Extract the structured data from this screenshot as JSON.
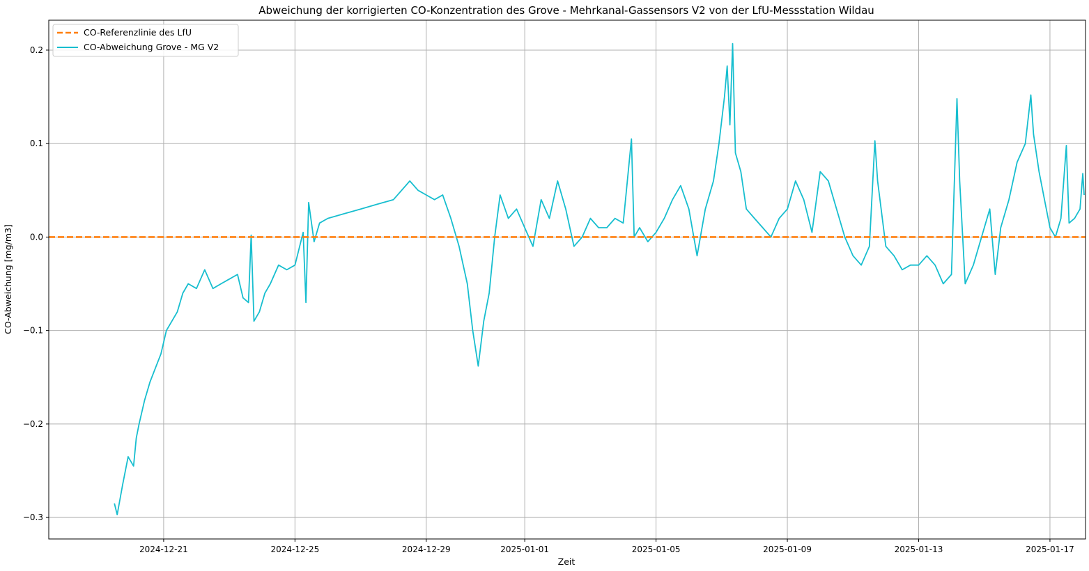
{
  "chart_data": {
    "type": "line",
    "title": "Abweichung der korrigierten CO-Konzentration des Grove - Mehrkanal-Gassensors V2 von der LfU-Messstation Wildau",
    "xlabel": "Zeit",
    "ylabel": "CO-Abweichung [mg/m3]",
    "xlim": [
      "2024-12-17T12:00",
      "2025-01-18T02:00"
    ],
    "ylim": [
      -0.323,
      0.232
    ],
    "x_ticks": [
      "2024-12-21",
      "2024-12-25",
      "2024-12-29",
      "2025-01-01",
      "2025-01-05",
      "2025-01-09",
      "2025-01-13",
      "2025-01-17"
    ],
    "y_ticks": [
      -0.3,
      -0.2,
      -0.1,
      0.0,
      0.1,
      0.2
    ],
    "y_tick_labels": [
      "−0.3",
      "−0.2",
      "−0.1",
      "0.0",
      "0.1",
      "0.2"
    ],
    "grid": true,
    "legend_position": "top-left",
    "series": [
      {
        "name": "CO-Referenzlinie des LfU",
        "style": "dashed",
        "color": "#ff7f0e",
        "points": [
          [
            "2024-12-17T12:00",
            0.0
          ],
          [
            "2025-01-18T02:00",
            0.0
          ]
        ]
      },
      {
        "name": "CO-Abweichung Grove - MG V2",
        "style": "solid",
        "color": "#17becf",
        "points": [
          [
            "2024-12-19T12:00",
            -0.285
          ],
          [
            "2024-12-19T14:00",
            -0.297
          ],
          [
            "2024-12-19T18:00",
            -0.265
          ],
          [
            "2024-12-19T22:00",
            -0.235
          ],
          [
            "2024-12-20T02:00",
            -0.245
          ],
          [
            "2024-12-20T04:00",
            -0.215
          ],
          [
            "2024-12-20T06:00",
            -0.2
          ],
          [
            "2024-12-20T10:00",
            -0.175
          ],
          [
            "2024-12-20T14:00",
            -0.155
          ],
          [
            "2024-12-20T18:00",
            -0.14
          ],
          [
            "2024-12-20T22:00",
            -0.125
          ],
          [
            "2024-12-21T02:00",
            -0.1
          ],
          [
            "2024-12-21T06:00",
            -0.09
          ],
          [
            "2024-12-21T10:00",
            -0.08
          ],
          [
            "2024-12-21T14:00",
            -0.06
          ],
          [
            "2024-12-21T18:00",
            -0.05
          ],
          [
            "2024-12-22T00:00",
            -0.055
          ],
          [
            "2024-12-22T06:00",
            -0.035
          ],
          [
            "2024-12-22T12:00",
            -0.055
          ],
          [
            "2024-12-22T18:00",
            -0.05
          ],
          [
            "2024-12-23T00:00",
            -0.045
          ],
          [
            "2024-12-23T06:00",
            -0.04
          ],
          [
            "2024-12-23T10:00",
            -0.065
          ],
          [
            "2024-12-23T14:00",
            -0.07
          ],
          [
            "2024-12-23T16:00",
            0.002
          ],
          [
            "2024-12-23T18:00",
            -0.09
          ],
          [
            "2024-12-23T22:00",
            -0.08
          ],
          [
            "2024-12-24T02:00",
            -0.06
          ],
          [
            "2024-12-24T06:00",
            -0.05
          ],
          [
            "2024-12-24T12:00",
            -0.03
          ],
          [
            "2024-12-24T18:00",
            -0.035
          ],
          [
            "2024-12-25T00:00",
            -0.03
          ],
          [
            "2024-12-25T06:00",
            0.005
          ],
          [
            "2024-12-25T08:00",
            -0.07
          ],
          [
            "2024-12-25T10:00",
            0.037
          ],
          [
            "2024-12-25T14:00",
            -0.005
          ],
          [
            "2024-12-25T18:00",
            0.015
          ],
          [
            "2024-12-26T00:00",
            0.02
          ],
          [
            "2024-12-26T12:00",
            0.025
          ],
          [
            "2024-12-27T00:00",
            0.03
          ],
          [
            "2024-12-27T12:00",
            0.035
          ],
          [
            "2024-12-28T00:00",
            0.04
          ],
          [
            "2024-12-28T12:00",
            0.06
          ],
          [
            "2024-12-28T18:00",
            0.05
          ],
          [
            "2024-12-29T00:00",
            0.045
          ],
          [
            "2024-12-29T06:00",
            0.04
          ],
          [
            "2024-12-29T12:00",
            0.045
          ],
          [
            "2024-12-29T18:00",
            0.02
          ],
          [
            "2024-12-30T00:00",
            -0.01
          ],
          [
            "2024-12-30T06:00",
            -0.05
          ],
          [
            "2024-12-30T10:00",
            -0.1
          ],
          [
            "2024-12-30T14:00",
            -0.138
          ],
          [
            "2024-12-30T18:00",
            -0.09
          ],
          [
            "2024-12-30T22:00",
            -0.06
          ],
          [
            "2024-12-31T02:00",
            0.0
          ],
          [
            "2024-12-31T06:00",
            0.045
          ],
          [
            "2024-12-31T12:00",
            0.02
          ],
          [
            "2024-12-31T18:00",
            0.03
          ],
          [
            "2025-01-01T00:00",
            0.01
          ],
          [
            "2025-01-01T06:00",
            -0.01
          ],
          [
            "2025-01-01T12:00",
            0.04
          ],
          [
            "2025-01-01T18:00",
            0.02
          ],
          [
            "2025-01-02T00:00",
            0.06
          ],
          [
            "2025-01-02T06:00",
            0.03
          ],
          [
            "2025-01-02T12:00",
            -0.01
          ],
          [
            "2025-01-02T18:00",
            0.0
          ],
          [
            "2025-01-03T00:00",
            0.02
          ],
          [
            "2025-01-03T06:00",
            0.01
          ],
          [
            "2025-01-03T12:00",
            0.01
          ],
          [
            "2025-01-03T18:00",
            0.02
          ],
          [
            "2025-01-04T00:00",
            0.015
          ],
          [
            "2025-01-04T06:00",
            0.105
          ],
          [
            "2025-01-04T08:00",
            0.0
          ],
          [
            "2025-01-04T12:00",
            0.01
          ],
          [
            "2025-01-04T18:00",
            -0.005
          ],
          [
            "2025-01-05T00:00",
            0.005
          ],
          [
            "2025-01-05T06:00",
            0.02
          ],
          [
            "2025-01-05T12:00",
            0.04
          ],
          [
            "2025-01-05T18:00",
            0.055
          ],
          [
            "2025-01-06T00:00",
            0.03
          ],
          [
            "2025-01-06T06:00",
            -0.02
          ],
          [
            "2025-01-06T12:00",
            0.03
          ],
          [
            "2025-01-06T18:00",
            0.06
          ],
          [
            "2025-01-06T22:00",
            0.1
          ],
          [
            "2025-01-07T02:00",
            0.15
          ],
          [
            "2025-01-07T04:00",
            0.183
          ],
          [
            "2025-01-07T06:00",
            0.12
          ],
          [
            "2025-01-07T08:00",
            0.207
          ],
          [
            "2025-01-07T10:00",
            0.09
          ],
          [
            "2025-01-07T14:00",
            0.07
          ],
          [
            "2025-01-07T18:00",
            0.03
          ],
          [
            "2025-01-08T00:00",
            0.02
          ],
          [
            "2025-01-08T06:00",
            0.01
          ],
          [
            "2025-01-08T12:00",
            0.0
          ],
          [
            "2025-01-08T18:00",
            0.02
          ],
          [
            "2025-01-09T00:00",
            0.03
          ],
          [
            "2025-01-09T06:00",
            0.06
          ],
          [
            "2025-01-09T12:00",
            0.04
          ],
          [
            "2025-01-09T18:00",
            0.005
          ],
          [
            "2025-01-10T00:00",
            0.07
          ],
          [
            "2025-01-10T06:00",
            0.06
          ],
          [
            "2025-01-10T12:00",
            0.03
          ],
          [
            "2025-01-10T18:00",
            0.0
          ],
          [
            "2025-01-11T00:00",
            -0.02
          ],
          [
            "2025-01-11T06:00",
            -0.03
          ],
          [
            "2025-01-11T12:00",
            -0.01
          ],
          [
            "2025-01-11T16:00",
            0.103
          ],
          [
            "2025-01-11T18:00",
            0.06
          ],
          [
            "2025-01-12T00:00",
            -0.01
          ],
          [
            "2025-01-12T06:00",
            -0.02
          ],
          [
            "2025-01-12T12:00",
            -0.035
          ],
          [
            "2025-01-12T18:00",
            -0.03
          ],
          [
            "2025-01-13T00:00",
            -0.03
          ],
          [
            "2025-01-13T06:00",
            -0.02
          ],
          [
            "2025-01-13T12:00",
            -0.03
          ],
          [
            "2025-01-13T18:00",
            -0.05
          ],
          [
            "2025-01-14T00:00",
            -0.04
          ],
          [
            "2025-01-14T04:00",
            0.148
          ],
          [
            "2025-01-14T06:00",
            0.06
          ],
          [
            "2025-01-14T10:00",
            -0.05
          ],
          [
            "2025-01-14T16:00",
            -0.03
          ],
          [
            "2025-01-14T22:00",
            0.0
          ],
          [
            "2025-01-15T04:00",
            0.03
          ],
          [
            "2025-01-15T08:00",
            -0.04
          ],
          [
            "2025-01-15T12:00",
            0.01
          ],
          [
            "2025-01-15T18:00",
            0.04
          ],
          [
            "2025-01-16T00:00",
            0.08
          ],
          [
            "2025-01-16T06:00",
            0.1
          ],
          [
            "2025-01-16T10:00",
            0.152
          ],
          [
            "2025-01-16T12:00",
            0.11
          ],
          [
            "2025-01-16T16:00",
            0.07
          ],
          [
            "2025-01-16T20:00",
            0.04
          ],
          [
            "2025-01-17T00:00",
            0.01
          ],
          [
            "2025-01-17T04:00",
            0.0
          ],
          [
            "2025-01-17T08:00",
            0.02
          ],
          [
            "2025-01-17T12:00",
            0.098
          ],
          [
            "2025-01-17T14:00",
            0.015
          ],
          [
            "2025-01-17T18:00",
            0.02
          ],
          [
            "2025-01-17T22:00",
            0.03
          ],
          [
            "2025-01-18T00:00",
            0.068
          ],
          [
            "2025-01-18T01:00",
            0.045
          ]
        ]
      }
    ]
  },
  "colors": {
    "reference": "#ff7f0e",
    "deviation": "#17becf",
    "grid": "#b0b0b0"
  }
}
